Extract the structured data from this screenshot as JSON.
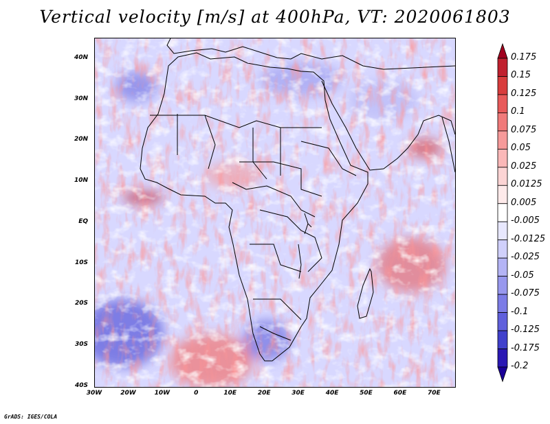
{
  "title": "Vertical velocity [m/s] at 400hPa, VT: 2020061803",
  "footer": "GrADS: IGES/COLA",
  "map": {
    "projection": "lat-lon",
    "lon_range": [
      -30,
      76
    ],
    "lat_range": [
      -40,
      45
    ],
    "lat_ticks": [
      {
        "value": 40,
        "label": "40N"
      },
      {
        "value": 30,
        "label": "30N"
      },
      {
        "value": 20,
        "label": "20N"
      },
      {
        "value": 10,
        "label": "10N"
      },
      {
        "value": 0,
        "label": "EQ"
      },
      {
        "value": -10,
        "label": "10S"
      },
      {
        "value": -20,
        "label": "20S"
      },
      {
        "value": -30,
        "label": "30S"
      },
      {
        "value": -40,
        "label": "40S"
      }
    ],
    "lon_ticks": [
      {
        "value": -30,
        "label": "30W"
      },
      {
        "value": -20,
        "label": "20W"
      },
      {
        "value": -10,
        "label": "10W"
      },
      {
        "value": 0,
        "label": "0"
      },
      {
        "value": 10,
        "label": "10E"
      },
      {
        "value": 20,
        "label": "20E"
      },
      {
        "value": 30,
        "label": "30E"
      },
      {
        "value": 40,
        "label": "40E"
      },
      {
        "value": 50,
        "label": "50E"
      },
      {
        "value": 60,
        "label": "60E"
      },
      {
        "value": 70,
        "label": "70E"
      }
    ],
    "background_color": "#d8d8ff",
    "coastline_color": "#000000"
  },
  "colorbar": {
    "labels": [
      "0.175",
      "0.15",
      "0.125",
      "0.1",
      "0.075",
      "0.05",
      "0.025",
      "0.0125",
      "0.005",
      "-0.005",
      "-0.0125",
      "-0.025",
      "-0.05",
      "-0.075",
      "-0.1",
      "-0.125",
      "-0.175",
      "-0.2"
    ],
    "colors": [
      "#a0001e",
      "#c0202e",
      "#d83c3c",
      "#e85a5a",
      "#f07a7a",
      "#f69a9a",
      "#fab8b8",
      "#fcd4d4",
      "#feeaea",
      "#ffffff",
      "#e8e8fe",
      "#d0d0fb",
      "#b4b4f5",
      "#9898ee",
      "#7c7ce6",
      "#6060dc",
      "#4040cc",
      "#2a18b4",
      "#1a0098"
    ]
  }
}
